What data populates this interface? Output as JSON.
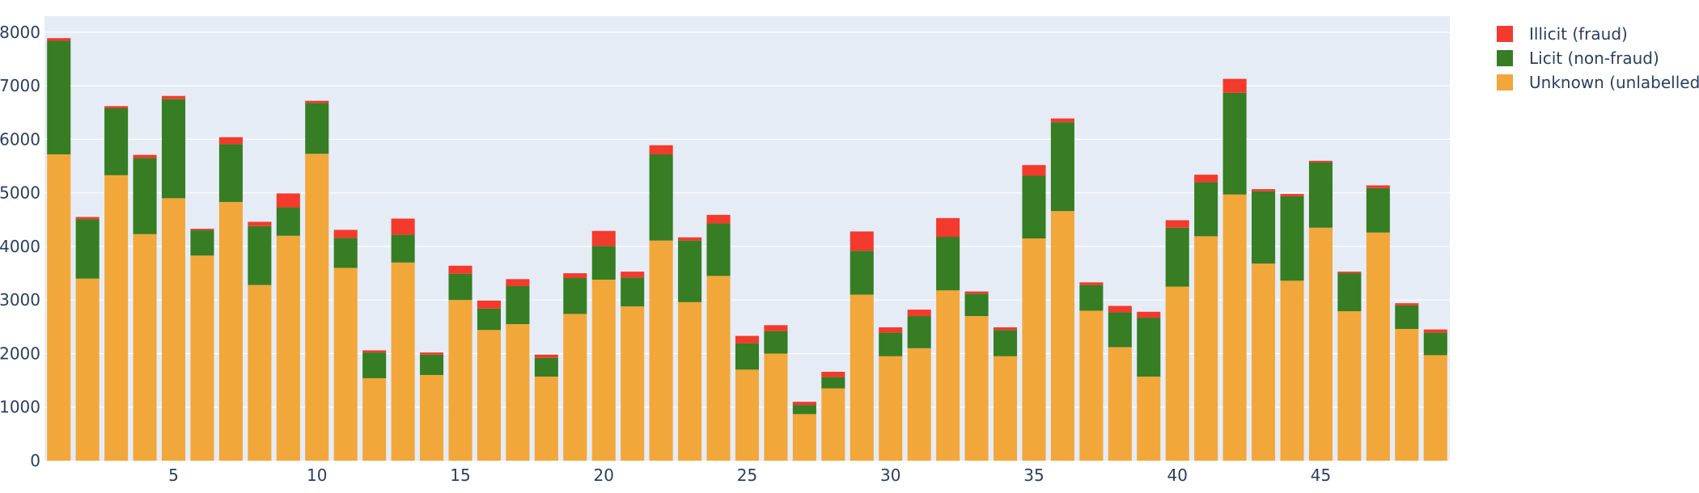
{
  "chart_data": {
    "type": "bar",
    "stacked": true,
    "title": "",
    "xlabel": "",
    "ylabel": "",
    "ylim": [
      0,
      8300
    ],
    "xlim": [
      0.5,
      49.5
    ],
    "grid": true,
    "legend_position": "top-right",
    "y_ticks": [
      0,
      1000,
      2000,
      3000,
      4000,
      5000,
      6000,
      7000,
      8000
    ],
    "x_ticks": [
      5,
      10,
      15,
      20,
      25,
      30,
      35,
      40,
      45
    ],
    "y_tick_labels": [
      "0",
      "1000",
      "2000",
      "3000",
      "4000",
      "5000",
      "6000",
      "7000",
      "8000"
    ],
    "x_tick_labels": [
      "5",
      "10",
      "15",
      "20",
      "25",
      "30",
      "35",
      "40",
      "45"
    ],
    "x": [
      1,
      2,
      3,
      4,
      5,
      6,
      7,
      8,
      9,
      10,
      11,
      12,
      13,
      14,
      15,
      16,
      17,
      18,
      19,
      20,
      21,
      22,
      23,
      24,
      25,
      26,
      27,
      28,
      29,
      30,
      31,
      32,
      33,
      34,
      35,
      36,
      37,
      38,
      39,
      40,
      41,
      42,
      43,
      44,
      45,
      46,
      47,
      48,
      49
    ],
    "series": [
      {
        "name": "Unknown (unlabelled)",
        "color": "#f2a73b",
        "values": [
          5720,
          3400,
          5330,
          4230,
          4900,
          3830,
          4830,
          3280,
          4200,
          5730,
          3600,
          1540,
          3700,
          1600,
          3000,
          2440,
          2550,
          1570,
          2740,
          3380,
          2880,
          4110,
          2960,
          3450,
          1700,
          2000,
          870,
          1350,
          3100,
          1950,
          2100,
          3180,
          2700,
          1950,
          4150,
          4660,
          2800,
          2120,
          1570,
          3250,
          4190,
          4970,
          3680,
          3360,
          4350,
          2790,
          4260,
          2460,
          1970
        ]
      },
      {
        "name": "Licit (non-fraud)",
        "color": "#367d23",
        "values": [
          2120,
          1110,
          1250,
          1420,
          1850,
          470,
          1080,
          1100,
          530,
          950,
          560,
          480,
          520,
          380,
          490,
          400,
          710,
          350,
          670,
          630,
          540,
          1610,
          1150,
          980,
          490,
          420,
          170,
          210,
          820,
          440,
          600,
          1000,
          420,
          490,
          1170,
          1660,
          480,
          650,
          1100,
          1100,
          1010,
          1900,
          1350,
          1580,
          1220,
          710,
          830,
          440,
          420
        ]
      },
      {
        "name": "Illicit (fraud)",
        "color": "#f33a2c",
        "values": [
          50,
          40,
          40,
          60,
          60,
          30,
          130,
          80,
          260,
          40,
          150,
          40,
          300,
          40,
          150,
          150,
          130,
          60,
          90,
          280,
          110,
          170,
          60,
          160,
          140,
          110,
          60,
          100,
          360,
          100,
          120,
          350,
          40,
          50,
          200,
          70,
          50,
          120,
          110,
          140,
          140,
          260,
          40,
          40,
          30,
          30,
          50,
          40,
          60
        ]
      }
    ]
  }
}
